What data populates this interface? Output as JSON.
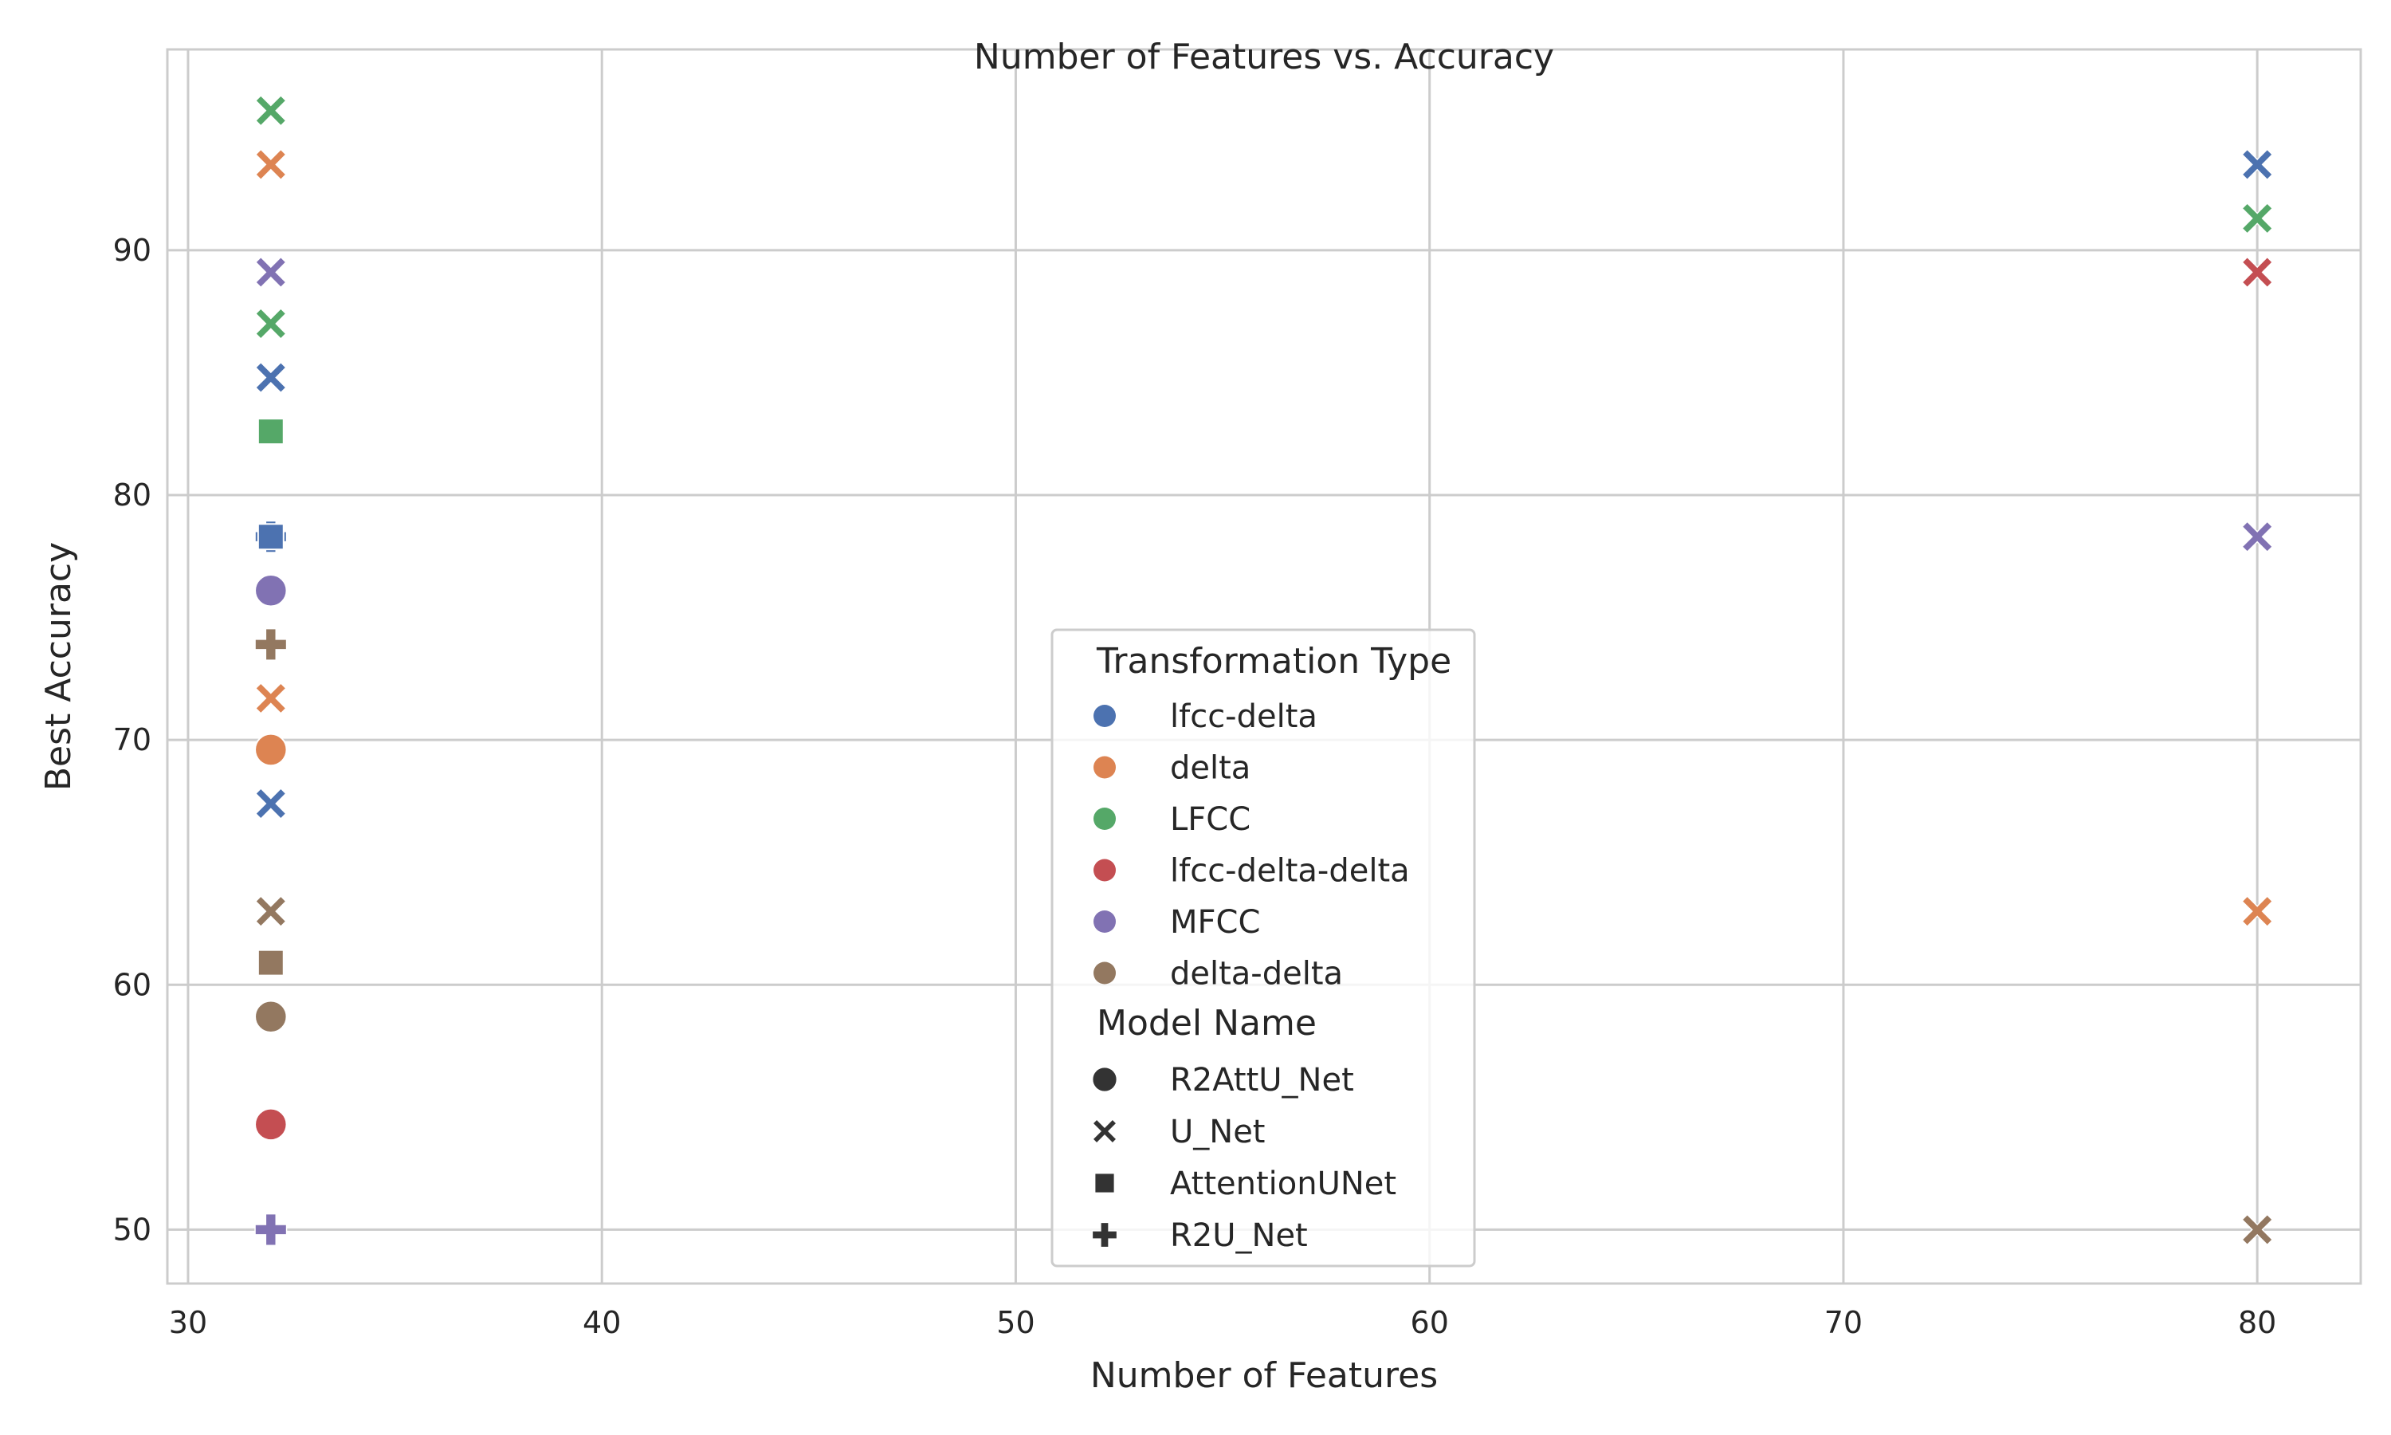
{
  "chart_data": {
    "type": "scatter",
    "title": "Number of Features vs. Accuracy",
    "xlabel": "Number of Features",
    "ylabel": "Best Accuracy",
    "xlim": [
      29.5,
      82.5
    ],
    "ylim": [
      47.8,
      98.2
    ],
    "xticks": [
      30,
      40,
      50,
      60,
      70,
      80
    ],
    "yticks": [
      50,
      60,
      70,
      80,
      90
    ],
    "grid": true,
    "legend_position": "center",
    "hue_legend_title": "Transformation Type",
    "style_legend_title": "Model Name",
    "hue_categories": [
      {
        "name": "lfcc-delta",
        "color": "#4c72b0"
      },
      {
        "name": "delta",
        "color": "#dd8452"
      },
      {
        "name": "LFCC",
        "color": "#55a868"
      },
      {
        "name": "lfcc-delta-delta",
        "color": "#c44e52"
      },
      {
        "name": "MFCC",
        "color": "#8172b3"
      },
      {
        "name": "delta-delta",
        "color": "#937860"
      }
    ],
    "style_categories": [
      {
        "name": "R2AttU_Net",
        "marker": "circle"
      },
      {
        "name": "U_Net",
        "marker": "x"
      },
      {
        "name": "AttentionUNet",
        "marker": "square"
      },
      {
        "name": "R2U_Net",
        "marker": "plus"
      }
    ],
    "points": [
      {
        "x": 32,
        "y": 95.7,
        "transformation": "LFCC",
        "model": "U_Net"
      },
      {
        "x": 32,
        "y": 93.5,
        "transformation": "delta",
        "model": "U_Net"
      },
      {
        "x": 32,
        "y": 89.1,
        "transformation": "MFCC",
        "model": "U_Net"
      },
      {
        "x": 32,
        "y": 87.0,
        "transformation": "LFCC",
        "model": "U_Net"
      },
      {
        "x": 32,
        "y": 84.8,
        "transformation": "lfcc-delta",
        "model": "U_Net"
      },
      {
        "x": 32,
        "y": 82.6,
        "transformation": "LFCC",
        "model": "AttentionUNet"
      },
      {
        "x": 32,
        "y": 78.3,
        "transformation": "lfcc-delta",
        "model": "R2U_Net"
      },
      {
        "x": 32,
        "y": 78.3,
        "transformation": "lfcc-delta",
        "model": "AttentionUNet"
      },
      {
        "x": 32,
        "y": 76.1,
        "transformation": "MFCC",
        "model": "R2AttU_Net"
      },
      {
        "x": 32,
        "y": 73.9,
        "transformation": "LFCC",
        "model": "R2U_Net"
      },
      {
        "x": 32,
        "y": 73.9,
        "transformation": "delta-delta",
        "model": "R2U_Net"
      },
      {
        "x": 32,
        "y": 71.7,
        "transformation": "delta",
        "model": "U_Net"
      },
      {
        "x": 32,
        "y": 69.6,
        "transformation": "delta",
        "model": "R2AttU_Net"
      },
      {
        "x": 32,
        "y": 67.4,
        "transformation": "lfcc-delta-delta",
        "model": "U_Net"
      },
      {
        "x": 32,
        "y": 67.4,
        "transformation": "lfcc-delta",
        "model": "U_Net"
      },
      {
        "x": 32,
        "y": 63.0,
        "transformation": "delta-delta",
        "model": "U_Net"
      },
      {
        "x": 32,
        "y": 60.9,
        "transformation": "delta-delta",
        "model": "AttentionUNet"
      },
      {
        "x": 32,
        "y": 58.7,
        "transformation": "delta-delta",
        "model": "R2AttU_Net"
      },
      {
        "x": 32,
        "y": 54.3,
        "transformation": "lfcc-delta-delta",
        "model": "R2AttU_Net"
      },
      {
        "x": 32,
        "y": 50.0,
        "transformation": "MFCC",
        "model": "R2U_Net"
      },
      {
        "x": 80,
        "y": 93.5,
        "transformation": "lfcc-delta",
        "model": "U_Net"
      },
      {
        "x": 80,
        "y": 91.3,
        "transformation": "LFCC",
        "model": "U_Net"
      },
      {
        "x": 80,
        "y": 89.1,
        "transformation": "lfcc-delta-delta",
        "model": "U_Net"
      },
      {
        "x": 80,
        "y": 78.3,
        "transformation": "MFCC",
        "model": "U_Net"
      },
      {
        "x": 80,
        "y": 63.0,
        "transformation": "delta",
        "model": "U_Net"
      },
      {
        "x": 80,
        "y": 50.0,
        "transformation": "delta-delta",
        "model": "U_Net"
      }
    ]
  }
}
